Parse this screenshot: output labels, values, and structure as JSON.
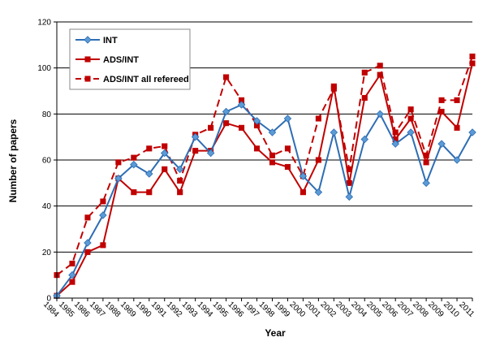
{
  "chart_data": {
    "type": "line",
    "title": "",
    "xlabel": "Year",
    "ylabel": "Number of papers",
    "ylim": [
      0,
      120
    ],
    "yticks": [
      0,
      20,
      40,
      60,
      80,
      100,
      120
    ],
    "grid": "horizontal",
    "legend_position": "top-left",
    "categories": [
      "1984",
      "1985",
      "1986",
      "1987",
      "1988",
      "1989",
      "1990",
      "1991",
      "1992",
      "1993",
      "1994",
      "1995",
      "1996",
      "1997",
      "1998",
      "1999",
      "2000",
      "2001",
      "2002",
      "2003",
      "2004",
      "2005",
      "2006",
      "2007",
      "2008",
      "2009",
      "2010",
      "2011"
    ],
    "series": [
      {
        "name": "INT",
        "color": "#2e6db4",
        "marker": "diamond",
        "dash": "solid",
        "values": [
          1,
          10,
          24,
          36,
          52,
          58,
          54,
          63,
          56,
          70,
          63,
          81,
          84,
          77,
          72,
          78,
          53,
          46,
          72,
          44,
          69,
          80,
          67,
          72,
          50,
          67,
          60,
          72
        ]
      },
      {
        "name": "ADS/INT",
        "color": "#c00000",
        "marker": "square",
        "dash": "solid",
        "values": [
          1,
          7,
          20,
          23,
          52,
          46,
          46,
          56,
          46,
          64,
          64,
          76,
          74,
          65,
          59,
          57,
          46,
          60,
          92,
          50,
          87,
          97,
          69,
          78,
          59,
          81,
          74,
          102
        ]
      },
      {
        "name": "ADS/INT all refereed",
        "color": "#c00000",
        "marker": "square",
        "dash": "dashed",
        "values": [
          10,
          15,
          35,
          42,
          59,
          61,
          65,
          66,
          51,
          71,
          74,
          96,
          86,
          75,
          62,
          65,
          53,
          78,
          91,
          56,
          98,
          101,
          72,
          82,
          62,
          86,
          86,
          105
        ]
      }
    ]
  }
}
